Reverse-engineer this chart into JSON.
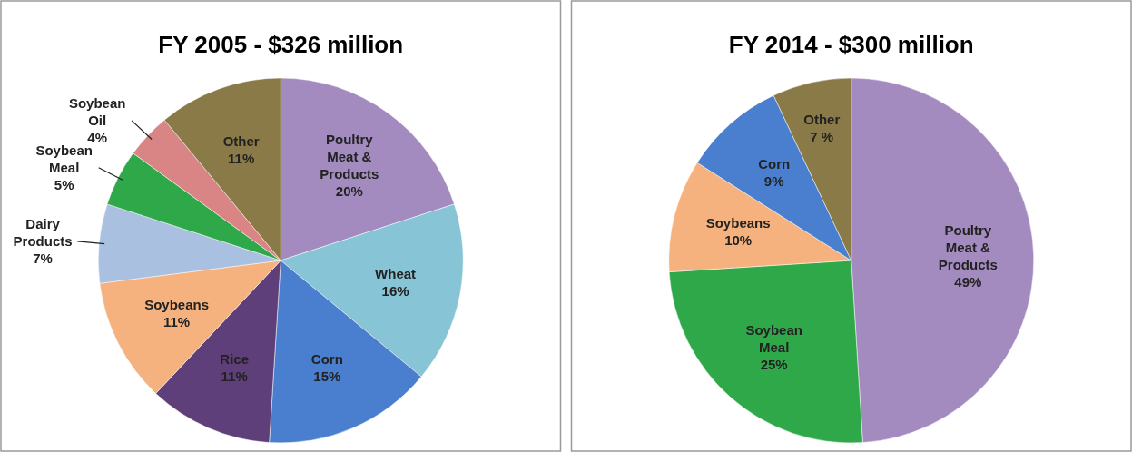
{
  "chart_data": [
    {
      "type": "pie",
      "title": "FY 2005 - $326 million",
      "categories": [
        "Poultry Meat & Products",
        "Wheat",
        "Corn",
        "Rice",
        "Soybeans",
        "Dairy Products",
        "Soybean Meal",
        "Soybean Oil",
        "Other"
      ],
      "values": [
        20,
        16,
        15,
        11,
        11,
        7,
        5,
        4,
        11
      ],
      "colors": [
        "#a48bbf",
        "#86c4d6",
        "#4a7fcf",
        "#5e3f7a",
        "#f5b27e",
        "#a9c0e0",
        "#2fa84a",
        "#d98585",
        "#8a7a47"
      ],
      "value_labels": [
        "20%",
        "16%",
        "15%",
        "11%",
        "11%",
        "7%",
        "5%",
        "4%",
        "11%"
      ]
    },
    {
      "type": "pie",
      "title": "FY 2014 - $300 million",
      "categories": [
        "Poultry Meat & Products",
        "Soybean Meal",
        "Soybeans",
        "Corn",
        "Other"
      ],
      "values": [
        49,
        25,
        10,
        9,
        7
      ],
      "colors": [
        "#a48bbf",
        "#2fa84a",
        "#f5b27e",
        "#4a7fcf",
        "#8a7a47"
      ],
      "value_labels": [
        "49%",
        "25%",
        "10%",
        "9%",
        "7 %"
      ]
    }
  ]
}
